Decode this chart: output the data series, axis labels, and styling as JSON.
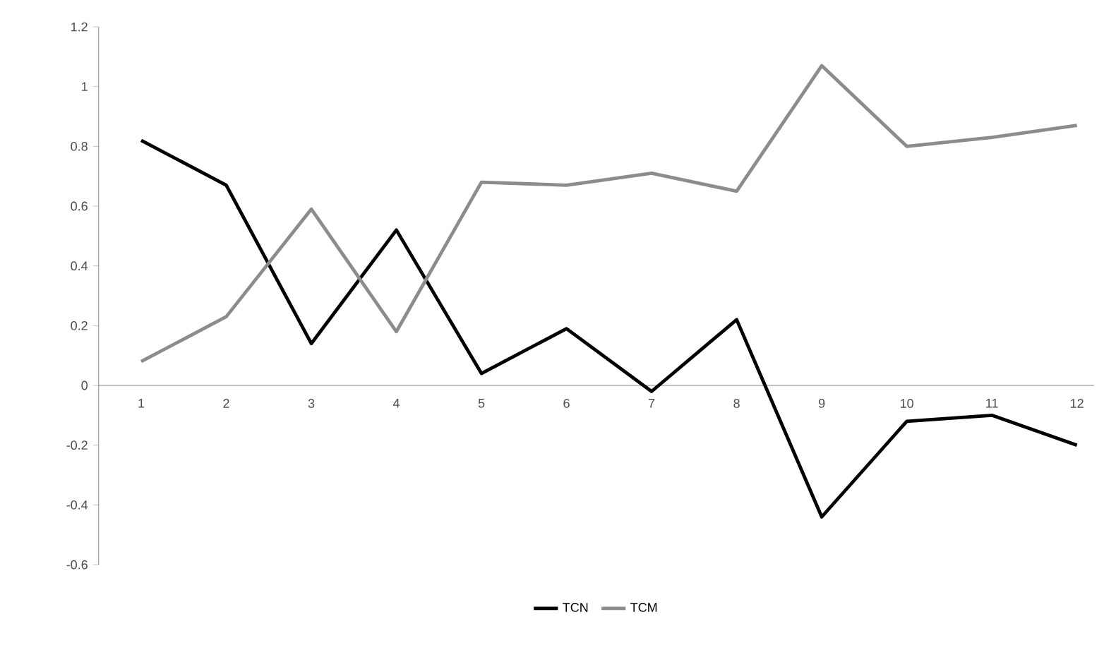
{
  "chart_data": {
    "type": "line",
    "categories": [
      "1",
      "2",
      "3",
      "4",
      "5",
      "6",
      "7",
      "8",
      "9",
      "10",
      "11",
      "12"
    ],
    "series": [
      {
        "name": "TCN",
        "color": "#000000",
        "values": [
          0.82,
          0.67,
          0.14,
          0.52,
          0.04,
          0.19,
          -0.02,
          0.22,
          -0.44,
          -0.12,
          -0.1,
          -0.2
        ]
      },
      {
        "name": "TCM",
        "color": "#8c8c8c",
        "values": [
          0.08,
          0.23,
          0.59,
          0.18,
          0.68,
          0.67,
          0.71,
          0.65,
          1.07,
          0.8,
          0.83,
          0.87
        ]
      }
    ],
    "ylim": [
      -0.6,
      1.2
    ],
    "yticks": [
      -0.6,
      -0.4,
      -0.2,
      0,
      0.2,
      0.4,
      0.6,
      0.8,
      1,
      1.2
    ],
    "legend": "bottom"
  }
}
